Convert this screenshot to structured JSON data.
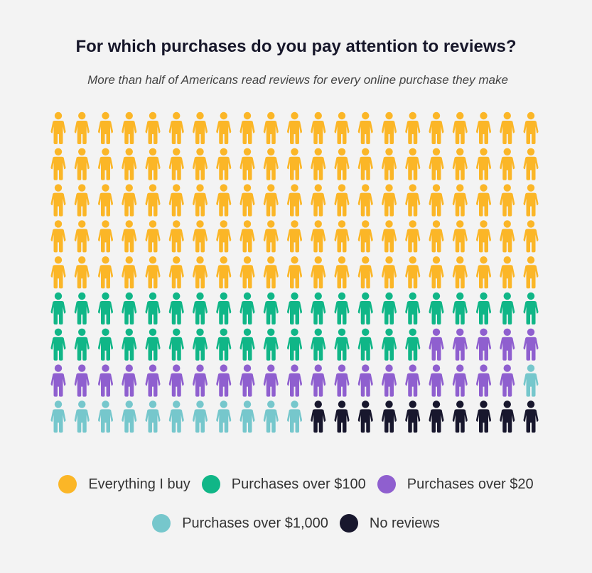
{
  "title": "For which purchases do you pay attention to reviews?",
  "subtitle": "More than half of Americans read reviews for every online purchase they make",
  "chart_data": {
    "type": "pictograph",
    "grid": {
      "rows": 9,
      "columns": 21
    },
    "title": "For which purchases do you pay attention to reviews?",
    "subtitle": "More than half of Americans read reviews for every online purchase they make",
    "legend_placement": "bottom",
    "series": [
      {
        "name": "Everything I buy",
        "count": 105,
        "color": "#fbb627"
      },
      {
        "name": "Purchases over $100",
        "count": 37,
        "color": "#10b687"
      },
      {
        "name": "Purchases over $20",
        "count": 25,
        "color": "#8f5fcf"
      },
      {
        "name": "Purchases over $1,000",
        "count": 12,
        "color": "#76c7cc"
      },
      {
        "name": "No reviews",
        "count": 10,
        "color": "#18172d"
      }
    ]
  }
}
